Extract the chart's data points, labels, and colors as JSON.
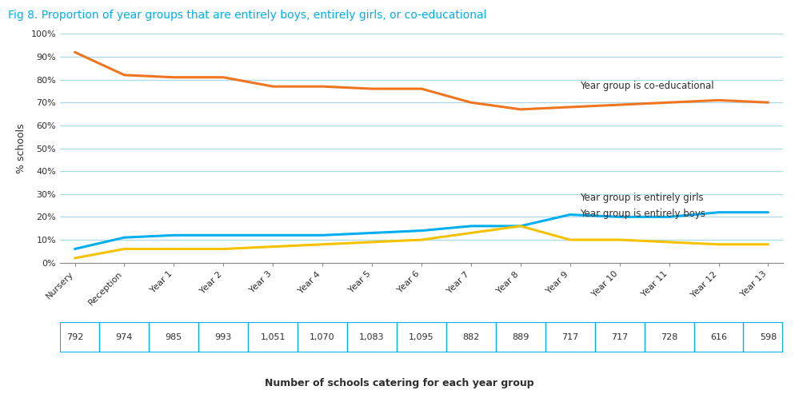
{
  "title": "Fig 8. Proportion of year groups that are entirely boys, entirely girls, or co-educational",
  "title_color": "#00AEEF",
  "xlabel": "Number of schools catering for each year group",
  "ylabel": "% schools",
  "categories": [
    "Nursery",
    "Reception",
    "Year 1",
    "Year 2",
    "Year 3",
    "Year 4",
    "Year 5",
    "Year 6",
    "Year 7",
    "Year 8",
    "Year 9",
    "Year 10",
    "Year 11",
    "Year 12",
    "Year 13"
  ],
  "school_counts": [
    "792",
    "974",
    "985",
    "993",
    "1,051",
    "1,070",
    "1,083",
    "1,095",
    "882",
    "889",
    "717",
    "717",
    "728",
    "616",
    "598"
  ],
  "coeducational": [
    92,
    82,
    81,
    81,
    77,
    77,
    76,
    76,
    70,
    67,
    68,
    69,
    70,
    71,
    70
  ],
  "entirely_girls": [
    6,
    11,
    12,
    12,
    12,
    12,
    13,
    14,
    16,
    16,
    21,
    20,
    20,
    22,
    22
  ],
  "entirely_boys": [
    2,
    6,
    6,
    6,
    7,
    8,
    9,
    10,
    13,
    16,
    10,
    10,
    9,
    8,
    8
  ],
  "coeducational_color": "#F07520",
  "girls_color": "#00AEEF",
  "boys_color": "#F5C200",
  "grid_color": "#ADD8E6",
  "background_color": "#FFFFFF",
  "label_coeducational": "Year group is co-educational",
  "label_girls": "Year group is entirely girls",
  "label_boys": "Year group is entirely boys",
  "ylim": [
    0,
    100
  ],
  "ytick_values": [
    0,
    10,
    20,
    30,
    40,
    50,
    60,
    70,
    80,
    90,
    100
  ],
  "ytick_labels": [
    "0%",
    "10%",
    "20%",
    "30%",
    "40%",
    "50%",
    "60%",
    "70%",
    "80%",
    "90%",
    "100%"
  ],
  "line_width": 2.2,
  "title_fontsize": 10,
  "axis_label_fontsize": 9,
  "tick_fontsize": 8,
  "annotation_fontsize": 8.5,
  "table_border_color": "#00AEEF",
  "text_color": "#2E2E2E"
}
